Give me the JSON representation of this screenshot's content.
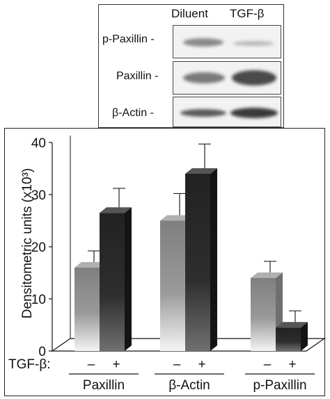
{
  "blot": {
    "header": {
      "col1": "Diluent",
      "col2": "TGF-β"
    },
    "rows": [
      {
        "label": "p-Paxillin -"
      },
      {
        "label": "Paxillin -"
      },
      {
        "label": "β-Actin -"
      }
    ]
  },
  "chart_data": {
    "type": "bar",
    "ylabel": "Densitometric units (x10³)",
    "ylim": [
      0,
      40
    ],
    "yticks": [
      "0",
      "10",
      "20",
      "30",
      "40"
    ],
    "treatment_label": "TGF-β:",
    "groups": [
      {
        "name": "Paxillin",
        "signs": [
          "–",
          "+"
        ],
        "values": [
          16,
          26.5
        ],
        "errors": [
          2.5,
          4
        ]
      },
      {
        "name": "β-Actin",
        "signs": [
          "–",
          "+"
        ],
        "values": [
          25,
          34
        ],
        "errors": [
          4.5,
          5
        ]
      },
      {
        "name": "p-Paxillin",
        "signs": [
          "–",
          "+"
        ],
        "values": [
          14,
          4.5
        ],
        "errors": [
          2.5,
          2.5
        ]
      }
    ]
  },
  "colors": {
    "minus_bar": "#8c8c8c",
    "plus_bar": "#2a2a2a"
  }
}
